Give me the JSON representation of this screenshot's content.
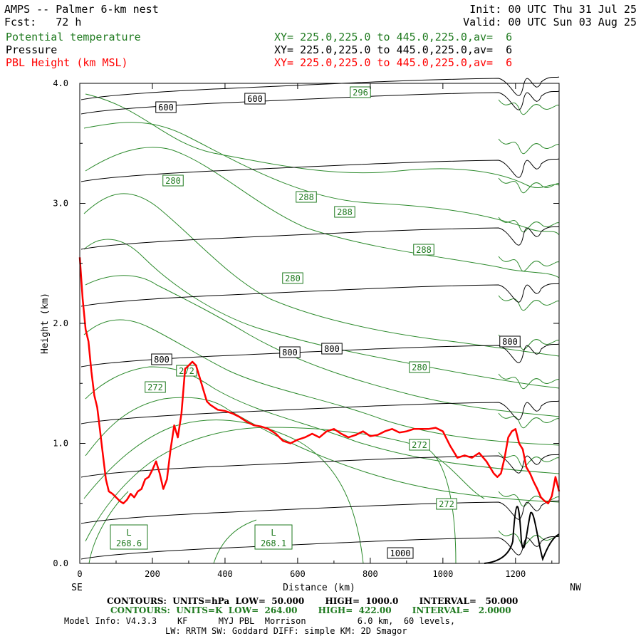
{
  "header": {
    "title": "AMPS -- Palmer 6-km nest",
    "fcst_label": "Fcst:",
    "fcst_value": "72 h",
    "init": "Init: 00 UTC Thu 31 Jul 25",
    "valid": "Valid: 00 UTC Sun 03 Aug 25"
  },
  "fields": [
    {
      "name": "Potential temperature",
      "xy": "XY= 225.0,225.0 to 445.0,225.0,av=  6",
      "color": "#1f7a1f"
    },
    {
      "name": "Pressure",
      "xy": "XY= 225.0,225.0 to 445.0,225.0,av=  6",
      "color": "#000000"
    },
    {
      "name": "PBL Height (km MSL)",
      "xy": "XY= 225.0,225.0 to 445.0,225.0,av=  6",
      "color": "#ff0000"
    }
  ],
  "chart_data": {
    "type": "line",
    "xlabel": "Distance (km)",
    "ylabel": "Height (km)",
    "xlim": [
      0,
      1320
    ],
    "ylim": [
      0,
      4.0
    ],
    "xticks": [
      0,
      200,
      400,
      600,
      800,
      1000,
      1200
    ],
    "yticks": [
      0.0,
      1.0,
      2.0,
      3.0,
      4.0
    ],
    "ytick_labels": [
      "0.0",
      "1.0",
      "2.0",
      "3.0",
      "4.0"
    ],
    "x_left_end": "SE",
    "x_right_end": "NW",
    "series": [
      {
        "name": "PBL Height (km MSL)",
        "color": "#ff0000",
        "x": [
          0,
          8,
          16,
          24,
          32,
          40,
          48,
          56,
          64,
          72,
          80,
          90,
          100,
          110,
          120,
          130,
          140,
          150,
          160,
          170,
          180,
          190,
          200,
          210,
          220,
          230,
          240,
          250,
          260,
          270,
          280,
          290,
          300,
          310,
          320,
          330,
          340,
          350,
          360,
          380,
          400,
          420,
          440,
          460,
          480,
          500,
          520,
          540,
          560,
          580,
          600,
          620,
          640,
          660,
          680,
          700,
          720,
          740,
          760,
          780,
          800,
          820,
          840,
          860,
          880,
          900,
          920,
          940,
          960,
          980,
          1000,
          1020,
          1040,
          1060,
          1080,
          1100,
          1120,
          1140,
          1150,
          1160,
          1170,
          1180,
          1190,
          1200,
          1210,
          1220,
          1230,
          1240,
          1250,
          1260,
          1270,
          1280,
          1290,
          1300,
          1310,
          1320
        ],
        "y": [
          2.55,
          2.2,
          1.95,
          1.85,
          1.6,
          1.4,
          1.3,
          1.1,
          0.9,
          0.7,
          0.6,
          0.58,
          0.55,
          0.52,
          0.5,
          0.53,
          0.58,
          0.55,
          0.6,
          0.62,
          0.7,
          0.72,
          0.78,
          0.85,
          0.75,
          0.62,
          0.7,
          0.95,
          1.15,
          1.05,
          1.25,
          1.62,
          1.65,
          1.68,
          1.65,
          1.55,
          1.45,
          1.35,
          1.32,
          1.28,
          1.27,
          1.25,
          1.22,
          1.18,
          1.15,
          1.14,
          1.12,
          1.08,
          1.02,
          1.0,
          1.03,
          1.05,
          1.08,
          1.05,
          1.1,
          1.12,
          1.08,
          1.05,
          1.07,
          1.1,
          1.06,
          1.07,
          1.1,
          1.12,
          1.09,
          1.1,
          1.12,
          1.12,
          1.12,
          1.13,
          1.1,
          0.98,
          0.88,
          0.9,
          0.88,
          0.92,
          0.85,
          0.75,
          0.72,
          0.75,
          0.88,
          1.05,
          1.1,
          1.12,
          1.0,
          0.95,
          0.8,
          0.75,
          0.68,
          0.62,
          0.55,
          0.52,
          0.5,
          0.56,
          0.72,
          0.6
        ]
      }
    ],
    "contour_labels_pressure": [
      "600",
      "600",
      "800",
      "800",
      "800",
      "800",
      "1000"
    ],
    "contour_labels_theta": [
      "296",
      "280",
      "288",
      "288",
      "288",
      "280",
      "272",
      "272",
      "280",
      "272",
      "272"
    ],
    "lows": [
      {
        "letter": "L",
        "value": "268.6"
      },
      {
        "letter": "L",
        "value": "268.1"
      }
    ]
  },
  "footer": {
    "pressure_contours": "CONTOURS:  UNITS=hPa  LOW=  50.000       HIGH=  1000.0       INTERVAL=   50.000",
    "theta_contours": "CONTOURS:  UNITS=K  LOW=  264.00       HIGH=  422.00       INTERVAL=   2.0000",
    "model_info": "Model Info: V4.3.3    KF      MYJ PBL  Morrison          6.0 km,  60 levels,",
    "physics": "LW: RRTM SW: Goddard DIFF: simple KM: 2D Smagor"
  }
}
